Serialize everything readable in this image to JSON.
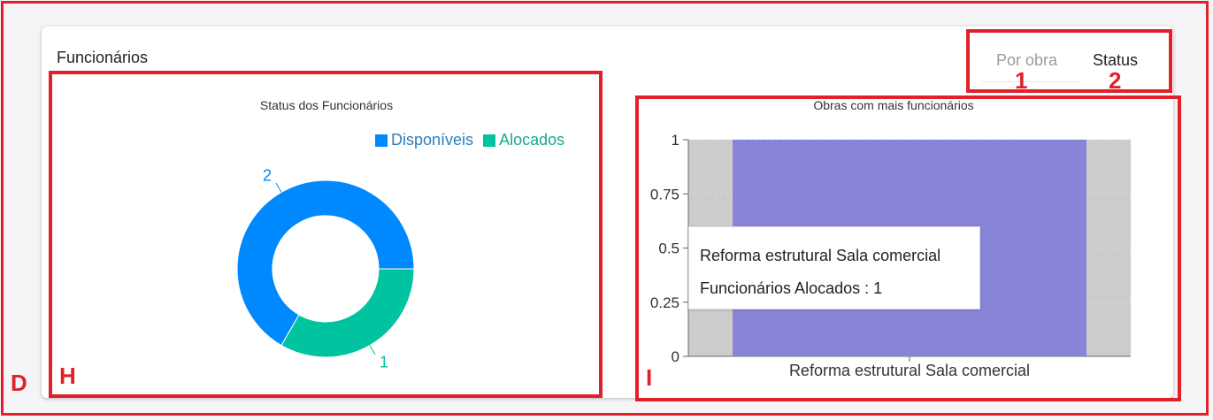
{
  "card": {
    "title": "Funcionários"
  },
  "tabs": [
    {
      "label": "Por obra",
      "active": false
    },
    {
      "label": "Status",
      "active": true
    }
  ],
  "annotations": {
    "outer": "D",
    "left_chart": "H",
    "right_chart": "I",
    "tab1": "1",
    "tab2": "2"
  },
  "colors": {
    "disponiveis": "#0088fe",
    "alocados": "#00c49f",
    "bar": "#8884d8",
    "cursor": "#cccccc",
    "annotation": "#e0212b"
  },
  "chart_data": [
    {
      "type": "pie",
      "title": "Status dos Funcionários",
      "donut": true,
      "legend_position": "top-right",
      "slices": [
        {
          "name": "Disponíveis",
          "value": 2
        },
        {
          "name": "Alocados",
          "value": 1
        }
      ]
    },
    {
      "type": "bar",
      "title": "Obras com mais funcionários",
      "categories": [
        "Reforma estrutural Sala comercial"
      ],
      "series": [
        {
          "name": "Funcionários Alocados",
          "values": [
            1
          ]
        }
      ],
      "ylim": [
        0,
        1
      ],
      "yticks": [
        "0",
        "0.25",
        "0.5",
        "0.75",
        "1"
      ],
      "grid": true,
      "tooltip": {
        "title": "Reforma estrutural Sala comercial",
        "line": "Funcionários Alocados : 1"
      }
    }
  ]
}
